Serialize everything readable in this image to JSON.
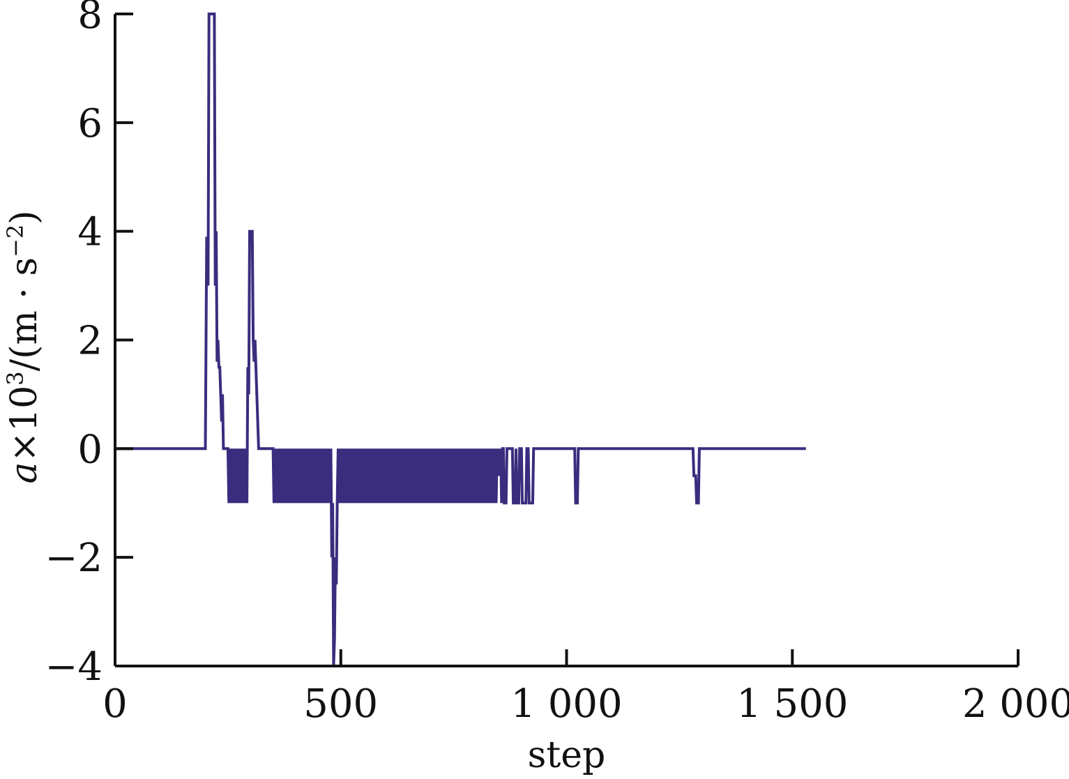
{
  "chart_data": {
    "type": "line",
    "title": "",
    "xlabel": "step",
    "ylabel": {
      "var": "a",
      "times": "×10",
      "exp": "3",
      "unit_open": "/(m · s",
      "unit_exp": "−2",
      "unit_close": ")"
    },
    "xlim": [
      0,
      2000
    ],
    "ylim": [
      -4,
      8
    ],
    "x_ticks": [
      0,
      500,
      1000,
      1500,
      2000
    ],
    "x_tick_labels": [
      "0",
      "500",
      "1 000",
      "1 500",
      "2 000"
    ],
    "y_ticks": [
      -4,
      -2,
      0,
      2,
      4,
      6,
      8
    ],
    "y_tick_labels": [
      "−4",
      "−2",
      "0",
      "2",
      "4",
      "6",
      "8"
    ],
    "grid": false,
    "series": [
      {
        "color": "#3a2d7e",
        "points": [
          [
            0,
            0
          ],
          [
            200,
            0
          ],
          [
            203,
            3.9
          ],
          [
            206,
            3
          ],
          [
            208,
            8
          ],
          [
            220,
            8
          ],
          [
            222,
            3
          ],
          [
            224,
            4
          ],
          [
            226,
            1.6
          ],
          [
            228,
            2
          ],
          [
            230,
            1.5
          ],
          [
            232,
            1.5
          ],
          [
            234,
            1
          ],
          [
            236,
            0.5
          ],
          [
            238,
            1
          ],
          [
            240,
            0
          ],
          [
            250,
            0
          ],
          [
            252,
            -1
          ],
          [
            254,
            0
          ],
          [
            256,
            -1
          ],
          [
            258,
            0
          ],
          [
            260,
            -1
          ],
          [
            262,
            0
          ],
          [
            264,
            -1
          ],
          [
            266,
            0
          ],
          [
            268,
            -1
          ],
          [
            270,
            0
          ],
          [
            272,
            -1
          ],
          [
            274,
            0
          ],
          [
            276,
            -1
          ],
          [
            278,
            0
          ],
          [
            280,
            -1
          ],
          [
            282,
            0
          ],
          [
            284,
            -1
          ],
          [
            286,
            0
          ],
          [
            288,
            -1
          ],
          [
            290,
            0
          ],
          [
            292,
            -1
          ],
          [
            294,
            1.5
          ],
          [
            296,
            1
          ],
          [
            298,
            4
          ],
          [
            304,
            4
          ],
          [
            306,
            2
          ],
          [
            308,
            1.6
          ],
          [
            310,
            2
          ],
          [
            312,
            1.5
          ],
          [
            314,
            1
          ],
          [
            316,
            0.5
          ],
          [
            318,
            0
          ],
          [
            350,
            0
          ],
          [
            352,
            -1
          ],
          [
            354,
            0
          ],
          [
            356,
            -1
          ],
          [
            358,
            0
          ],
          [
            360,
            -1
          ],
          [
            362,
            0
          ],
          [
            364,
            -1
          ],
          [
            366,
            0
          ],
          [
            368,
            -1
          ],
          [
            370,
            0
          ],
          [
            372,
            -1
          ],
          [
            374,
            0
          ],
          [
            376,
            -1
          ],
          [
            378,
            0
          ],
          [
            380,
            -1
          ],
          [
            382,
            0
          ],
          [
            384,
            -1
          ],
          [
            386,
            0
          ],
          [
            388,
            -1
          ],
          [
            390,
            0
          ],
          [
            392,
            -1
          ],
          [
            394,
            0
          ],
          [
            396,
            -1
          ],
          [
            398,
            0
          ],
          [
            400,
            -1
          ],
          [
            402,
            0
          ],
          [
            404,
            -1
          ],
          [
            406,
            0
          ],
          [
            408,
            -1
          ],
          [
            410,
            0
          ],
          [
            412,
            -1
          ],
          [
            414,
            0
          ],
          [
            416,
            -1
          ],
          [
            418,
            0
          ],
          [
            420,
            -1
          ],
          [
            422,
            0
          ],
          [
            424,
            -1
          ],
          [
            426,
            0
          ],
          [
            428,
            -1
          ],
          [
            430,
            0
          ],
          [
            432,
            -1
          ],
          [
            434,
            0
          ],
          [
            436,
            -1
          ],
          [
            438,
            0
          ],
          [
            440,
            -1
          ],
          [
            442,
            0
          ],
          [
            444,
            -1
          ],
          [
            446,
            0
          ],
          [
            448,
            -1
          ],
          [
            450,
            0
          ],
          [
            452,
            -1
          ],
          [
            454,
            0
          ],
          [
            456,
            -1
          ],
          [
            458,
            0
          ],
          [
            460,
            -1
          ],
          [
            462,
            0
          ],
          [
            464,
            -1
          ],
          [
            466,
            0
          ],
          [
            468,
            -1
          ],
          [
            470,
            0
          ],
          [
            472,
            -1
          ],
          [
            474,
            0
          ],
          [
            476,
            -1
          ],
          [
            478,
            0
          ],
          [
            480,
            -2
          ],
          [
            482,
            -1
          ],
          [
            484,
            -4
          ],
          [
            486,
            -3.5
          ],
          [
            488,
            -2
          ],
          [
            490,
            -2.5
          ],
          [
            492,
            -1
          ],
          [
            494,
            0
          ],
          [
            496,
            -1
          ],
          [
            498,
            0
          ],
          [
            500,
            -1
          ],
          [
            502,
            0
          ],
          [
            504,
            -1
          ],
          [
            506,
            0
          ],
          [
            508,
            -1
          ],
          [
            510,
            0
          ],
          [
            512,
            -1
          ],
          [
            514,
            0
          ],
          [
            516,
            -1
          ],
          [
            518,
            0
          ],
          [
            520,
            -1
          ],
          [
            522,
            0
          ],
          [
            524,
            -1
          ],
          [
            526,
            0
          ],
          [
            528,
            -1
          ],
          [
            530,
            0
          ],
          [
            532,
            -1
          ],
          [
            534,
            0
          ],
          [
            536,
            -1
          ],
          [
            538,
            0
          ],
          [
            540,
            -1
          ],
          [
            542,
            0
          ],
          [
            544,
            -1
          ],
          [
            546,
            0
          ],
          [
            548,
            -1
          ],
          [
            550,
            0
          ],
          [
            552,
            -1
          ],
          [
            554,
            0
          ],
          [
            556,
            -1
          ],
          [
            558,
            0
          ],
          [
            560,
            -1
          ],
          [
            562,
            0
          ],
          [
            564,
            -1
          ],
          [
            566,
            0
          ],
          [
            568,
            -1
          ],
          [
            570,
            0
          ],
          [
            572,
            -1
          ],
          [
            574,
            0
          ],
          [
            576,
            -1
          ],
          [
            578,
            0
          ],
          [
            580,
            -1
          ],
          [
            582,
            0
          ],
          [
            584,
            -1
          ],
          [
            586,
            0
          ],
          [
            588,
            -1
          ],
          [
            590,
            0
          ],
          [
            592,
            -1
          ],
          [
            594,
            0
          ],
          [
            596,
            -1
          ],
          [
            598,
            0
          ],
          [
            600,
            -1
          ],
          [
            602,
            0
          ],
          [
            604,
            -1
          ],
          [
            606,
            0
          ],
          [
            608,
            -1
          ],
          [
            610,
            0
          ],
          [
            612,
            -1
          ],
          [
            614,
            0
          ],
          [
            616,
            -1
          ],
          [
            618,
            0
          ],
          [
            620,
            -1
          ],
          [
            622,
            0
          ],
          [
            624,
            -1
          ],
          [
            626,
            0
          ],
          [
            628,
            -1
          ],
          [
            630,
            0
          ],
          [
            632,
            -1
          ],
          [
            634,
            0
          ],
          [
            636,
            -1
          ],
          [
            638,
            0
          ],
          [
            640,
            -1
          ],
          [
            642,
            0
          ],
          [
            644,
            -1
          ],
          [
            646,
            0
          ],
          [
            648,
            -1
          ],
          [
            650,
            0
          ],
          [
            652,
            -1
          ],
          [
            654,
            0
          ],
          [
            656,
            -1
          ],
          [
            658,
            0
          ],
          [
            660,
            -1
          ],
          [
            662,
            0
          ],
          [
            664,
            -1
          ],
          [
            666,
            0
          ],
          [
            668,
            -1
          ],
          [
            670,
            0
          ],
          [
            672,
            -1
          ],
          [
            674,
            0
          ],
          [
            676,
            -1
          ],
          [
            678,
            0
          ],
          [
            680,
            -1
          ],
          [
            682,
            0
          ],
          [
            684,
            -1
          ],
          [
            686,
            0
          ],
          [
            688,
            -1
          ],
          [
            690,
            0
          ],
          [
            692,
            -1
          ],
          [
            694,
            0
          ],
          [
            696,
            -1
          ],
          [
            698,
            0
          ],
          [
            700,
            -1
          ],
          [
            702,
            0
          ],
          [
            704,
            -1
          ],
          [
            706,
            0
          ],
          [
            708,
            -1
          ],
          [
            710,
            0
          ],
          [
            712,
            -1
          ],
          [
            714,
            0
          ],
          [
            716,
            -1
          ],
          [
            718,
            0
          ],
          [
            720,
            -1
          ],
          [
            722,
            0
          ],
          [
            724,
            -1
          ],
          [
            726,
            0
          ],
          [
            728,
            -1
          ],
          [
            730,
            0
          ],
          [
            732,
            -1
          ],
          [
            734,
            0
          ],
          [
            736,
            -1
          ],
          [
            738,
            0
          ],
          [
            740,
            -1
          ],
          [
            742,
            0
          ],
          [
            744,
            -1
          ],
          [
            746,
            0
          ],
          [
            748,
            -1
          ],
          [
            750,
            0
          ],
          [
            752,
            -1
          ],
          [
            754,
            0
          ],
          [
            756,
            -1
          ],
          [
            758,
            0
          ],
          [
            760,
            -1
          ],
          [
            762,
            0
          ],
          [
            764,
            -1
          ],
          [
            766,
            0
          ],
          [
            768,
            -1
          ],
          [
            770,
            0
          ],
          [
            772,
            -1
          ],
          [
            774,
            0
          ],
          [
            776,
            -1
          ],
          [
            778,
            0
          ],
          [
            780,
            -1
          ],
          [
            782,
            0
          ],
          [
            784,
            -1
          ],
          [
            786,
            0
          ],
          [
            788,
            -1
          ],
          [
            790,
            0
          ],
          [
            792,
            -1
          ],
          [
            794,
            0
          ],
          [
            796,
            -1
          ],
          [
            798,
            0
          ],
          [
            800,
            -1
          ],
          [
            802,
            0
          ],
          [
            804,
            -1
          ],
          [
            806,
            0
          ],
          [
            808,
            -1
          ],
          [
            810,
            0
          ],
          [
            812,
            -1
          ],
          [
            814,
            0
          ],
          [
            816,
            -1
          ],
          [
            818,
            0
          ],
          [
            820,
            -1
          ],
          [
            822,
            0
          ],
          [
            824,
            -1
          ],
          [
            826,
            0
          ],
          [
            828,
            -1
          ],
          [
            830,
            0
          ],
          [
            832,
            -1
          ],
          [
            834,
            0
          ],
          [
            836,
            -1
          ],
          [
            838,
            0
          ],
          [
            840,
            -1
          ],
          [
            842,
            0
          ],
          [
            844,
            -1
          ],
          [
            846,
            0
          ],
          [
            848,
            -0.5
          ],
          [
            850,
            0
          ],
          [
            852,
            -0.5
          ],
          [
            854,
            0
          ],
          [
            856,
            -1
          ],
          [
            858,
            0
          ],
          [
            860,
            0
          ],
          [
            862,
            -1
          ],
          [
            866,
            -1
          ],
          [
            868,
            0
          ],
          [
            880,
            0
          ],
          [
            882,
            -1
          ],
          [
            886,
            -1
          ],
          [
            888,
            0
          ],
          [
            890,
            -1
          ],
          [
            894,
            -1
          ],
          [
            896,
            0
          ],
          [
            900,
            0
          ],
          [
            902,
            -1
          ],
          [
            910,
            -1
          ],
          [
            912,
            0
          ],
          [
            915,
            0
          ],
          [
            917,
            -1
          ],
          [
            925,
            -1
          ],
          [
            927,
            0
          ],
          [
            1018,
            0
          ],
          [
            1020,
            -1
          ],
          [
            1024,
            -1
          ],
          [
            1026,
            0
          ],
          [
            1280,
            0
          ],
          [
            1282,
            -0.5
          ],
          [
            1286,
            -0.5
          ],
          [
            1288,
            -1
          ],
          [
            1292,
            -1
          ],
          [
            1294,
            0
          ],
          [
            1530,
            0
          ]
        ]
      }
    ]
  }
}
